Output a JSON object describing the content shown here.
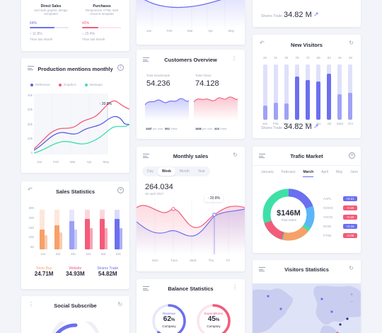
{
  "sales_card": {
    "direct_title": "Direct Sales",
    "direct_desc": [
      "and web graphic design",
      "templates"
    ],
    "direct_pct": "64%",
    "direct_fill": 0.64,
    "direct_change": "11.8%",
    "direct_period": "Than last Month",
    "purch_title": "Purchases",
    "purch_desc": [
      "Responsive HTML web",
      "resume template"
    ],
    "purch_pct": "42%",
    "purch_fill": 0.42,
    "purch_change": "15.4%",
    "purch_period": "Than last Month"
  },
  "top_line_card": {
    "months": [
      "Jan",
      "Feb",
      "Mar",
      "Apr",
      "May"
    ]
  },
  "top_right_card": {
    "label": "Shares Trade",
    "value": "34.82 M"
  },
  "production": {
    "title": "Production mentions monthly",
    "legend": [
      "Reference",
      "Graphics",
      "Mockups"
    ],
    "colors": [
      "#5b5fe0",
      "#f35b7a",
      "#3ee0a8"
    ],
    "yticks": [
      "40k",
      "30k",
      "20k",
      "10k",
      "0"
    ],
    "months": [
      "Jan",
      "Feb",
      "Mar",
      "Apr",
      "May"
    ],
    "marker": "20.8%"
  },
  "customers": {
    "title": "Customers Overview",
    "left_label": "Total Downloads",
    "left_value": "54.236",
    "right_label": "Total Views",
    "right_value": "74.128",
    "left_stats": [
      {
        "v": "2487",
        "l": "per visit"
      },
      {
        "v": "562",
        "l": "Visits"
      }
    ],
    "right_stats": [
      {
        "v": "1806",
        "l": "per visit"
      },
      {
        "v": "423",
        "l": "Visits"
      }
    ]
  },
  "new_visitors": {
    "title": "New Visitors",
    "values_top": [
      "26",
      "31",
      "30",
      "78",
      "72",
      "69",
      "83",
      "46",
      "49"
    ],
    "bars": [
      {
        "m": "Jan",
        "v": 26
      },
      {
        "m": "Feb",
        "v": 31
      },
      {
        "m": "Mar",
        "v": 30
      },
      {
        "m": "Apr",
        "v": 78
      },
      {
        "m": "May",
        "v": 72
      },
      {
        "m": "Jun",
        "v": 69
      },
      {
        "m": "Jul",
        "v": 83
      },
      {
        "m": "Sept",
        "v": 46
      },
      {
        "m": "Oct",
        "v": 49
      }
    ],
    "label": "Shares Trade",
    "value": "34.82 M"
  },
  "sales_stats": {
    "title": "Sales Statistics",
    "yticks": [
      "300",
      "200",
      "150",
      "100",
      "50"
    ],
    "groups": [
      {
        "m": "1St",
        "a": 0.9,
        "b": 0.45,
        "color": "#f7a06a"
      },
      {
        "m": "2St",
        "a": 0.9,
        "b": 0.55,
        "color": "#f7a06a"
      },
      {
        "m": "3St",
        "a": 0.9,
        "b": 0.65,
        "color": "#9aa0f5"
      },
      {
        "m": "4St",
        "a": 0.9,
        "b": 0.7,
        "color": "#f35b7a"
      },
      {
        "m": "5St",
        "a": 0.9,
        "b": 0.7,
        "color": "#f35b7a"
      },
      {
        "m": "6St",
        "a": 0.9,
        "b": 0.7,
        "color": "#6b6ff0"
      }
    ],
    "stats": [
      {
        "l": "Store Buy",
        "v": "24.71M",
        "c": "#f7a06a"
      },
      {
        "l": "Website",
        "v": "34.93M",
        "c": "#f35b7a"
      },
      {
        "l": "Shares Trade",
        "v": "54.82M",
        "c": "#6b6ff0"
      }
    ]
  },
  "monthly_sales": {
    "title": "Monthly sales",
    "tabs": [
      "Day",
      "Week",
      "Month",
      "Year"
    ],
    "active_tab": 1,
    "value": "264.034",
    "date": "26 April 2017",
    "marker": "20.8%",
    "days": [
      "Mon",
      "Tues",
      "Wed",
      "Thu",
      "Fri"
    ]
  },
  "traffic": {
    "title": "Trafic Market",
    "tabs": [
      "January",
      "February",
      "March",
      "April",
      "May",
      "June"
    ],
    "active_tab": 2,
    "total": "$146M",
    "total_label": "Total Sales",
    "rows": [
      {
        "name": "AAPL",
        "val": "+0.21",
        "color": "#6b6ff0"
      },
      {
        "name": "GOOG",
        "val": "-0.15",
        "color": "#f35b7a"
      },
      {
        "name": "YHOO",
        "val": "-0.16",
        "color": "#f35b7a"
      },
      {
        "name": "DOW",
        "val": "+0.16",
        "color": "#6b6ff0"
      },
      {
        "name": "FTSE",
        "val": "-0.09",
        "color": "#f35b7a"
      }
    ]
  },
  "social": {
    "title": "Social Subscribe"
  },
  "balance": {
    "title": "Balance Statistics",
    "left": {
      "label": "Revenue",
      "pct": "62",
      "sub": "Company",
      "frac": 0.62,
      "color": "#6b6ff0"
    },
    "right": {
      "label": "Expenditures",
      "pct": "45",
      "sub": "Company",
      "frac": 0.45,
      "color": "#f35b7a"
    },
    "pct_sign": "%"
  },
  "visitors_stats": {
    "title": "Visitors Statistics",
    "zoom_in": "+",
    "zoom_out": "−"
  }
}
